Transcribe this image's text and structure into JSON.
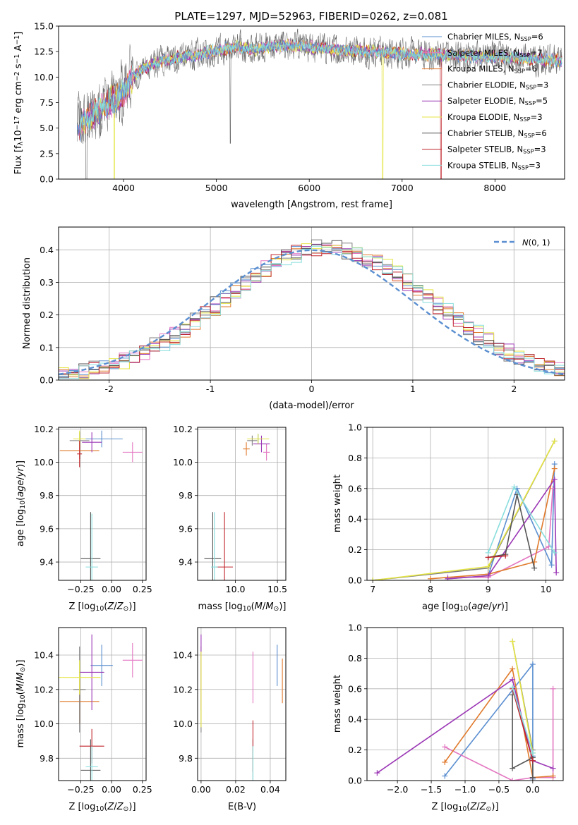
{
  "figure": {
    "title": "PLATE=1297, MJD=52963, FIBERID=0262, z=0.081",
    "models": [
      {
        "name": "Chabrier MILES",
        "nssp": 6,
        "color": "#5b8fd0"
      },
      {
        "name": "Salpeter MILES",
        "nssp": 7,
        "color": "#e377c2"
      },
      {
        "name": "Kroupa MILES",
        "nssp": 6,
        "color": "#e07a2c"
      },
      {
        "name": "Chabrier ELODIE",
        "nssp": 3,
        "color": "#7f7f7f"
      },
      {
        "name": "Salpeter ELODIE",
        "nssp": 5,
        "color": "#9c39b6"
      },
      {
        "name": "Kroupa ELODIE",
        "nssp": 3,
        "color": "#e5e543"
      },
      {
        "name": "Chabrier STELIB",
        "nssp": 6,
        "color": "#555555"
      },
      {
        "name": "Salpeter STELIB",
        "nssp": 3,
        "color": "#c0262d"
      },
      {
        "name": "Kroupa STELIB",
        "nssp": 3,
        "color": "#88dddd"
      }
    ]
  },
  "chart_data": [
    {
      "id": "spectrum",
      "type": "line",
      "xlabel": "wavelength [Angstrom, rest frame]",
      "ylabel": "Flux [f_λ 10^-17 erg cm^-2 s^-1 A^-1]",
      "xlim": [
        3300,
        8750
      ],
      "ylim": [
        0,
        15
      ],
      "xticks": [
        4000,
        5000,
        6000,
        7000,
        8000
      ],
      "yticks": [
        0.0,
        2.5,
        5.0,
        7.5,
        10.0,
        12.5,
        15.0
      ],
      "ytick_labels": [
        "0.0",
        "2.5",
        "5.0",
        "7.5",
        "10.0",
        "12.5",
        "15.0"
      ],
      "legend_position": "right",
      "envelope": {
        "x": [
          3500,
          3600,
          3700,
          3800,
          3900,
          4000,
          4100,
          4200,
          4400,
          4600,
          4800,
          5000,
          5200,
          5400,
          5600,
          5800,
          6000,
          6200,
          6400,
          6600,
          6800,
          7000,
          7200,
          7400,
          7600,
          7800,
          8000,
          8200,
          8400,
          8700
        ],
        "y": [
          4.8,
          5.9,
          6.6,
          7.2,
          7.7,
          8.4,
          10.0,
          10.8,
          11.6,
          11.9,
          12.2,
          12.6,
          12.9,
          12.8,
          13.0,
          13.1,
          12.9,
          12.8,
          12.6,
          12.6,
          12.4,
          12.3,
          12.2,
          12.2,
          12.1,
          12.0,
          12.0,
          11.9,
          11.8,
          11.6
        ]
      }
    },
    {
      "id": "residuals",
      "type": "step-histogram",
      "xlabel": "(data-model)/error",
      "ylabel": "Normed distribution",
      "xlim": [
        -2.5,
        2.5
      ],
      "ylim": [
        0,
        0.47
      ],
      "xticks": [
        -2,
        -1,
        0,
        1,
        2
      ],
      "yticks": [
        0.0,
        0.1,
        0.2,
        0.3,
        0.4
      ],
      "ytick_labels": [
        "0.0",
        "0.1",
        "0.2",
        "0.3",
        "0.4"
      ],
      "reference_curve": {
        "name": "N(0,1)",
        "mean": 0,
        "sigma": 1,
        "style": "dashed"
      },
      "bin_width": 0.1
    },
    {
      "id": "age-vs-Z",
      "type": "errorbar",
      "xlabel": "Z [log10(Z/Z⊙)]",
      "ylabel": "age [log10(age/yr)]",
      "xlim": [
        -0.43,
        0.28
      ],
      "ylim": [
        9.29,
        10.21
      ],
      "xticks": [
        -0.25,
        0.0,
        0.25
      ],
      "xtick_labels": [
        "−0.25",
        "0.00",
        "0.25"
      ],
      "yticks": [
        9.4,
        9.6,
        9.8,
        10.0,
        10.2
      ],
      "ytick_labels": [
        "9.4",
        "9.6",
        "9.8",
        "10.0",
        "10.2"
      ],
      "points": [
        {
          "series": 0,
          "x": -0.08,
          "y": 10.14,
          "xerr": 0.17,
          "yerr": 0.05
        },
        {
          "series": 1,
          "x": 0.17,
          "y": 10.06,
          "xerr": 0.08,
          "yerr": 0.06
        },
        {
          "series": 2,
          "x": -0.26,
          "y": 10.07,
          "xerr": 0.16,
          "yerr": 0.05
        },
        {
          "series": 3,
          "x": -0.26,
          "y": 10.13,
          "xerr": 0.08,
          "yerr": 0.05
        },
        {
          "series": 4,
          "x": -0.16,
          "y": 10.12,
          "xerr": 0.08,
          "yerr": 0.06
        },
        {
          "series": 5,
          "x": -0.26,
          "y": 10.14,
          "xerr": 0.05,
          "yerr": 0.05
        },
        {
          "series": 6,
          "x": -0.17,
          "y": 9.42,
          "xerr": 0.08,
          "yerr": 0.28
        },
        {
          "series": 7,
          "x": -0.26,
          "y": 10.05,
          "xerr": 0.02,
          "yerr": 0.08
        },
        {
          "series": 8,
          "x": -0.16,
          "y": 9.37,
          "xerr": 0.05,
          "yerr": 0.32
        }
      ]
    },
    {
      "id": "age-vs-mass",
      "type": "errorbar",
      "xlabel": "mass [log10(M/M⊙)]",
      "ylabel": "",
      "xlim": [
        9.55,
        10.6
      ],
      "ylim": [
        9.29,
        10.21
      ],
      "xticks": [
        10.0,
        10.5
      ],
      "xtick_labels": [
        "10.0",
        "10.5"
      ],
      "yticks": [
        9.4,
        9.6,
        9.8,
        10.0,
        10.2
      ],
      "ytick_labels": [
        "9.4",
        "9.6",
        "9.8",
        "10.0",
        "10.2"
      ],
      "points": [
        {
          "series": 0,
          "x": 10.27,
          "y": 10.14,
          "xerr": 0.05,
          "yerr": 0.03
        },
        {
          "series": 1,
          "x": 10.37,
          "y": 10.06,
          "xerr": 0.04,
          "yerr": 0.05
        },
        {
          "series": 2,
          "x": 10.13,
          "y": 10.08,
          "xerr": 0.04,
          "yerr": 0.04
        },
        {
          "series": 3,
          "x": 10.2,
          "y": 10.13,
          "xerr": 0.06,
          "yerr": 0.03
        },
        {
          "series": 4,
          "x": 10.31,
          "y": 10.11,
          "xerr": 0.1,
          "yerr": 0.05
        },
        {
          "series": 5,
          "x": 10.27,
          "y": 10.14,
          "xerr": 0.13,
          "yerr": 0.03
        },
        {
          "series": 6,
          "x": 9.73,
          "y": 9.42,
          "xerr": 0.1,
          "yerr": 0.28
        },
        {
          "series": 7,
          "x": 9.87,
          "y": 9.37,
          "xerr": 0.1,
          "yerr": 0.33
        },
        {
          "series": 8,
          "x": 9.75,
          "y": 9.37,
          "xerr": 0.04,
          "yerr": 0.33
        }
      ]
    },
    {
      "id": "weight-vs-age",
      "type": "line",
      "xlabel": "age [log10(age/yr)]",
      "ylabel": "mass weight",
      "xlim": [
        6.9,
        10.3
      ],
      "ylim": [
        0,
        1
      ],
      "xticks": [
        7,
        8,
        9,
        10
      ],
      "xtick_labels": [
        "7",
        "8",
        "9",
        "10"
      ],
      "yticks": [
        0.0,
        0.2,
        0.4,
        0.6,
        0.8,
        1.0
      ],
      "ytick_labels": [
        "0.0",
        "0.2",
        "0.4",
        "0.6",
        "0.8",
        "1.0"
      ],
      "series": [
        {
          "index": 0,
          "x": [
            8.3,
            9.0,
            9.5,
            10.1,
            10.15
          ],
          "y": [
            0.01,
            0.03,
            0.6,
            0.1,
            0.76
          ]
        },
        {
          "index": 1,
          "x": [
            8.3,
            9.0,
            10.05,
            10.12
          ],
          "y": [
            0.02,
            0.02,
            0.22,
            0.6
          ]
        },
        {
          "index": 2,
          "x": [
            8.0,
            9.0,
            9.8,
            10.15
          ],
          "y": [
            0.01,
            0.04,
            0.12,
            0.73
          ]
        },
        {
          "index": 3,
          "x": [
            7.0,
            9.0,
            10.15
          ],
          "y": [
            0.0,
            0.08,
            0.91
          ]
        },
        {
          "index": 4,
          "x": [
            8.3,
            9.0,
            10.15,
            10.18
          ],
          "y": [
            0.01,
            0.03,
            0.66,
            0.05
          ]
        },
        {
          "index": 5,
          "x": [
            7.0,
            9.0,
            10.15
          ],
          "y": [
            0.0,
            0.09,
            0.91
          ]
        },
        {
          "index": 6,
          "x": [
            9.0,
            9.3,
            9.5,
            9.8
          ],
          "y": [
            0.15,
            0.17,
            0.56,
            0.08
          ]
        },
        {
          "index": 7,
          "x": [
            9.0,
            9.3
          ],
          "y": [
            0.15,
            0.16
          ]
        },
        {
          "index": 8,
          "x": [
            9.0,
            9.45,
            10.15
          ],
          "y": [
            0.18,
            0.61,
            0.18
          ]
        }
      ]
    },
    {
      "id": "mass-vs-Z",
      "type": "errorbar",
      "xlabel": "Z [log10(Z/Z⊙)]",
      "ylabel": "mass [log10(M/M⊙)]",
      "xlim": [
        -0.43,
        0.28
      ],
      "ylim": [
        9.67,
        10.56
      ],
      "xticks": [
        -0.25,
        0.0,
        0.25
      ],
      "xtick_labels": [
        "−0.25",
        "0.00",
        "0.25"
      ],
      "yticks": [
        9.8,
        10.0,
        10.2,
        10.4
      ],
      "ytick_labels": [
        "9.8",
        "10.0",
        "10.2",
        "10.4"
      ],
      "points": [
        {
          "series": 0,
          "x": -0.08,
          "y": 10.34,
          "xerr": 0.09,
          "yerr": 0.12
        },
        {
          "series": 1,
          "x": 0.17,
          "y": 10.37,
          "xerr": 0.08,
          "yerr": 0.1
        },
        {
          "series": 2,
          "x": -0.26,
          "y": 10.13,
          "xerr": 0.16,
          "yerr": 0.13
        },
        {
          "series": 3,
          "x": -0.26,
          "y": 10.2,
          "xerr": 0.05,
          "yerr": 0.25
        },
        {
          "series": 4,
          "x": -0.16,
          "y": 10.3,
          "xerr": 0.1,
          "yerr": 0.22
        },
        {
          "series": 5,
          "x": -0.26,
          "y": 10.27,
          "xerr": 0.17,
          "yerr": 0.1
        },
        {
          "series": 6,
          "x": -0.17,
          "y": 9.73,
          "xerr": 0.08,
          "yerr": 0.18
        },
        {
          "series": 7,
          "x": -0.16,
          "y": 9.87,
          "xerr": 0.1,
          "yerr": 0.1
        },
        {
          "series": 8,
          "x": -0.16,
          "y": 9.75,
          "xerr": 0.05,
          "yerr": 0.12
        }
      ]
    },
    {
      "id": "mass-vs-ebv",
      "type": "errorbar",
      "xlabel": "E(B-V)",
      "ylabel": "",
      "xlim": [
        -0.002,
        0.049
      ],
      "ylim": [
        9.67,
        10.56
      ],
      "xticks": [
        0.0,
        0.02,
        0.04
      ],
      "xtick_labels": [
        "0.00",
        "0.02",
        "0.04"
      ],
      "yticks": [
        9.8,
        10.0,
        10.2,
        10.4
      ],
      "ytick_labels": [
        "9.8",
        "10.0",
        "10.2",
        "10.4"
      ],
      "points": [
        {
          "series": 0,
          "x": 0.044,
          "y": 10.34,
          "xerr": 0.0,
          "yerr": 0.12
        },
        {
          "series": 1,
          "x": 0.03,
          "y": 10.27,
          "xerr": 0.0,
          "yerr": 0.15
        },
        {
          "series": 2,
          "x": 0.047,
          "y": 10.25,
          "xerr": 0.0,
          "yerr": 0.13
        },
        {
          "series": 3,
          "x": 0.0,
          "y": 10.2,
          "xerr": 0.0,
          "yerr": 0.25
        },
        {
          "series": 4,
          "x": 0.0,
          "y": 10.3,
          "xerr": 0.0,
          "yerr": 0.22
        },
        {
          "series": 5,
          "x": 0.0,
          "y": 10.2,
          "xerr": 0.0,
          "yerr": 0.22
        },
        {
          "series": 6,
          "x": 0.03,
          "y": 9.73,
          "xerr": 0.0,
          "yerr": 0.18
        },
        {
          "series": 7,
          "x": 0.03,
          "y": 9.87,
          "xerr": 0.0,
          "yerr": 0.15
        },
        {
          "series": 8,
          "x": 0.03,
          "y": 9.75,
          "xerr": 0.0,
          "yerr": 0.12
        }
      ]
    },
    {
      "id": "weight-vs-Z",
      "type": "line",
      "xlabel": "Z [log10(Z/Z⊙)]",
      "ylabel": "mass weight",
      "xlim": [
        -2.45,
        0.45
      ],
      "ylim": [
        0,
        1
      ],
      "xticks": [
        -2.0,
        -1.5,
        -1.0,
        -0.5,
        0.0
      ],
      "xtick_labels": [
        "−2.0",
        "−1.5",
        "−1.0",
        "−0.5",
        "0.0"
      ],
      "yticks": [
        0.0,
        0.2,
        0.4,
        0.6,
        0.8,
        1.0
      ],
      "ytick_labels": [
        "0.0",
        "0.2",
        "0.4",
        "0.6",
        "0.8",
        "1.0"
      ],
      "series": [
        {
          "index": 0,
          "x": [
            -1.3,
            0.0,
            0.0,
            0.0
          ],
          "y": [
            0.03,
            0.76,
            0.01,
            0.16
          ]
        },
        {
          "index": 1,
          "x": [
            -1.3,
            -0.3,
            0.0,
            0.3,
            0.3
          ],
          "y": [
            0.22,
            0.0,
            0.02,
            0.02,
            0.6
          ]
        },
        {
          "index": 2,
          "x": [
            -1.3,
            -0.3,
            0.0,
            0.3
          ],
          "y": [
            0.12,
            0.73,
            0.02,
            0.03
          ]
        },
        {
          "index": 3,
          "x": [
            -0.3,
            0.0
          ],
          "y": [
            0.91,
            0.2
          ]
        },
        {
          "index": 4,
          "x": [
            -2.3,
            -0.3,
            0.0,
            0.3
          ],
          "y": [
            0.05,
            0.66,
            0.13,
            0.08
          ]
        },
        {
          "index": 5,
          "x": [
            -0.3,
            0.0
          ],
          "y": [
            0.91,
            0.18
          ]
        },
        {
          "index": 6,
          "x": [
            -0.3,
            -0.3,
            0.0,
            0.0
          ],
          "y": [
            0.56,
            0.08,
            0.15,
            0.02
          ]
        },
        {
          "index": 7,
          "x": [
            -0.3,
            0.0
          ],
          "y": [
            0.6,
            0.13
          ]
        },
        {
          "index": 8,
          "x": [
            -0.3,
            0.0
          ],
          "y": [
            0.61,
            0.18
          ]
        }
      ]
    }
  ]
}
